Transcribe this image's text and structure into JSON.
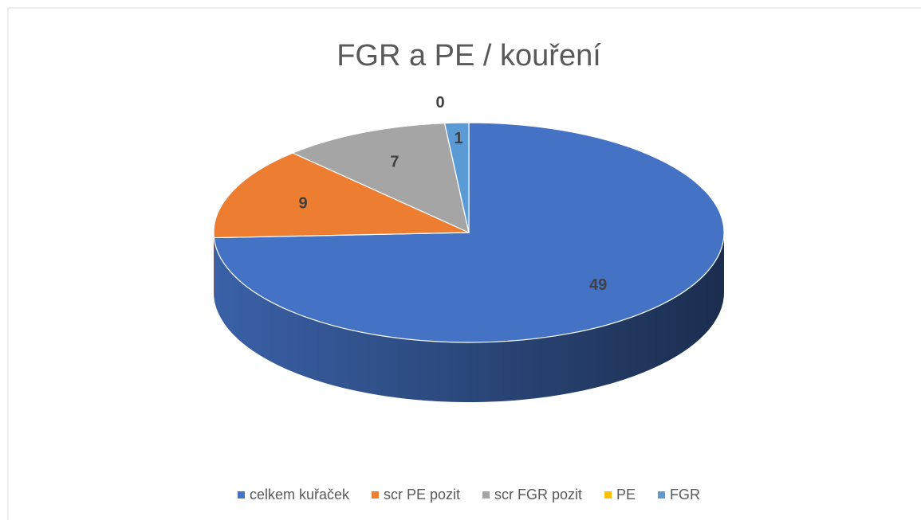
{
  "chart_data": {
    "type": "pie3d",
    "title": "FGR a PE / kouření",
    "categories": [
      "celkem kuřaček",
      "scr PE pozit",
      "scr FGR pozit",
      "PE",
      "FGR"
    ],
    "values": [
      49,
      9,
      7,
      0,
      1
    ],
    "colors": [
      "#4472c4",
      "#ed7d31",
      "#a5a5a5",
      "#ffc000",
      "#5b9bd5"
    ],
    "legend": "bottom"
  }
}
